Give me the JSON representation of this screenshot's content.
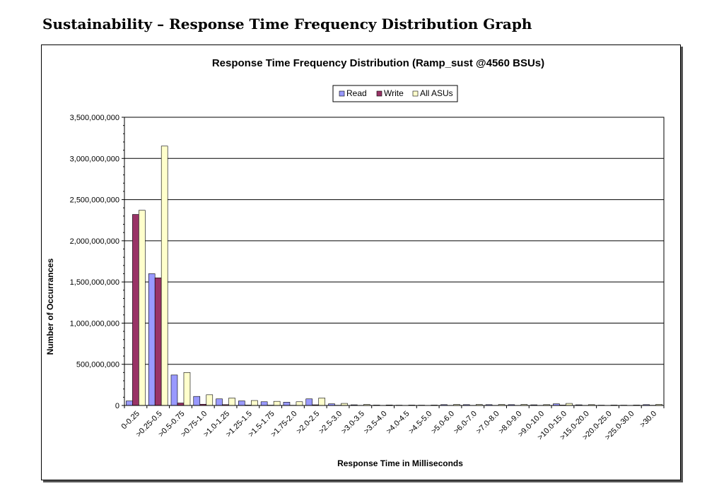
{
  "page": {
    "heading": "Sustainability – Response Time Frequency Distribution Graph"
  },
  "colors": {
    "read": "#9999ff",
    "write": "#993366",
    "all": "#ffffcc",
    "gridline": "#000000",
    "plot_background": "#ffffff"
  },
  "chart_data": {
    "type": "bar",
    "title": "Response Time Frequency Distribution (Ramp_sust @4560 BSUs)",
    "xlabel": "Response Time in Milliseconds",
    "ylabel": "Number of Occurrances",
    "ylim": [
      0,
      3500000000
    ],
    "yticks": [
      0,
      500000000,
      1000000000,
      1500000000,
      2000000000,
      2500000000,
      3000000000,
      3500000000
    ],
    "ytick_labels": [
      "0",
      "500,000,000",
      "1,000,000,000",
      "1,500,000,000",
      "2,000,000,000",
      "2,500,000,000",
      "3,000,000,000",
      "3,500,000,000"
    ],
    "grid": true,
    "legend_position": "top-center",
    "categories": [
      "0-0.25",
      ">0.25-0.5",
      ">0.5-0.75",
      ">0.75-1.0",
      ">1.0-1.25",
      ">1.25-1.5",
      ">1.5-1.75",
      ">1.75-2.0",
      ">2.0-2.5",
      ">2.5-3.0",
      ">3.0-3.5",
      ">3.5-4.0",
      ">4.0-4.5",
      ">4.5-5.0",
      ">5.0-6.0",
      ">6.0-7.0",
      ">7.0-8.0",
      ">8.0-9.0",
      ">9.0-10.0",
      ">10.0-15.0",
      ">15.0-20.0",
      ">20.0-25.0",
      ">25.0-30.0",
      ">30.0"
    ],
    "series": [
      {
        "name": "Read",
        "color_key": "read",
        "values": [
          55000000,
          1600000000,
          370000000,
          110000000,
          80000000,
          55000000,
          45000000,
          40000000,
          80000000,
          20000000,
          8000000,
          5000000,
          4000000,
          4000000,
          10000000,
          10000000,
          10000000,
          10000000,
          8000000,
          20000000,
          8000000,
          4000000,
          4000000,
          10000000
        ]
      },
      {
        "name": "Write",
        "color_key": "write",
        "values": [
          2320000000,
          1550000000,
          30000000,
          15000000,
          10000000,
          5000000,
          4000000,
          3000000,
          8000000,
          3000000,
          2000000,
          1000000,
          1000000,
          1000000,
          2000000,
          2000000,
          2000000,
          2000000,
          2000000,
          5000000,
          2000000,
          1000000,
          1000000,
          3000000
        ]
      },
      {
        "name": "All ASUs",
        "color_key": "all",
        "values": [
          2370000000,
          3150000000,
          400000000,
          130000000,
          90000000,
          60000000,
          50000000,
          45000000,
          90000000,
          25000000,
          12000000,
          6000000,
          5000000,
          5000000,
          12000000,
          12000000,
          12000000,
          12000000,
          10000000,
          25000000,
          10000000,
          5000000,
          5000000,
          13000000
        ]
      }
    ]
  }
}
